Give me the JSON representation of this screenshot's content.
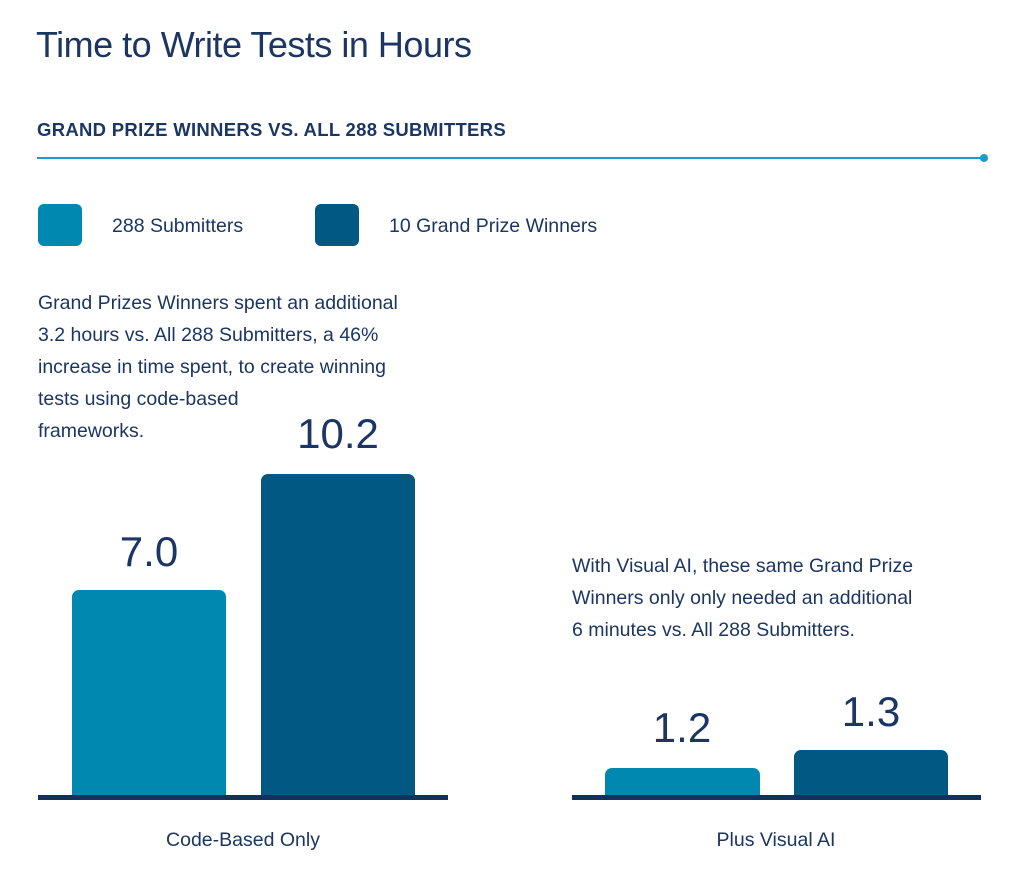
{
  "chart_data": {
    "type": "bar",
    "title": "Time to Write Tests in Hours",
    "subtitle": "GRAND PRIZE WINNERS VS. ALL 288 SUBMITTERS",
    "categories": [
      "Code-Based Only",
      "Plus Visual AI"
    ],
    "series": [
      {
        "name": "288 Submitters",
        "values": [
          7.0,
          1.2
        ],
        "labels": [
          "7.0",
          "1.2"
        ],
        "color": "#0088b0"
      },
      {
        "name": "10 Grand Prize Winners",
        "values": [
          10.2,
          1.3
        ],
        "labels": [
          "10.2",
          "1.3"
        ],
        "color": "#015883"
      }
    ],
    "legend_position": "top-left",
    "annotations": [
      {
        "lines": [
          "Grand Prizes Winners spent an additional",
          "3.2 hours vs. All 288 Submitters, a 46%",
          "increase in time spent, to create winning",
          "tests using code-based",
          "frameworks."
        ]
      },
      {
        "lines": [
          "With Visual AI, these same Grand Prize",
          "Winners only only needed an additional",
          "6 minutes vs. All 288 Submitters."
        ]
      }
    ],
    "grid": false,
    "xlabel": "",
    "ylabel": ""
  },
  "colors": {
    "accent": "#1a9bc8",
    "text": "#1b3663",
    "axis": "#13315e"
  }
}
